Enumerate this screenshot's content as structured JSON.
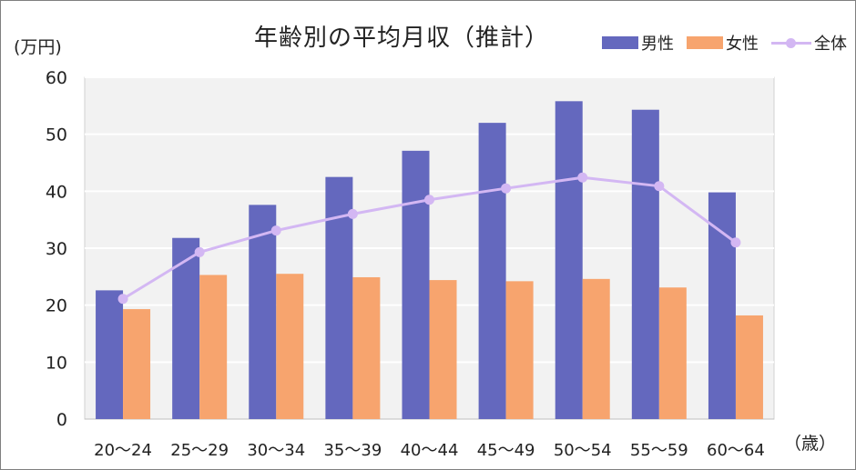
{
  "chart_data": {
    "type": "bar",
    "title": "年齢別の平均月収（推計）",
    "ylabel": "(万円)",
    "xlabel": "（歳）",
    "categories": [
      "20～24",
      "25～29",
      "30～34",
      "35～39",
      "40～44",
      "45～49",
      "50～54",
      "55～59",
      "60～64"
    ],
    "ylim": [
      0,
      60
    ],
    "yticks": [
      "0",
      "10",
      "20",
      "30",
      "40",
      "50",
      "60"
    ],
    "grid": true,
    "legend_position": "top-right",
    "series": [
      {
        "name": "男性",
        "kind": "bar",
        "color": "#6468be",
        "values": [
          22.6,
          31.8,
          37.6,
          42.5,
          47.1,
          52.0,
          55.8,
          54.3,
          39.8
        ]
      },
      {
        "name": "女性",
        "kind": "bar",
        "color": "#f7a46e",
        "values": [
          19.3,
          25.3,
          25.5,
          24.9,
          24.4,
          24.2,
          24.6,
          23.1,
          18.2
        ]
      },
      {
        "name": "全体",
        "kind": "line",
        "color": "#d3b7f3",
        "values": [
          21.1,
          29.3,
          33.1,
          36.0,
          38.5,
          40.5,
          42.4,
          40.9,
          31.0
        ]
      }
    ]
  }
}
